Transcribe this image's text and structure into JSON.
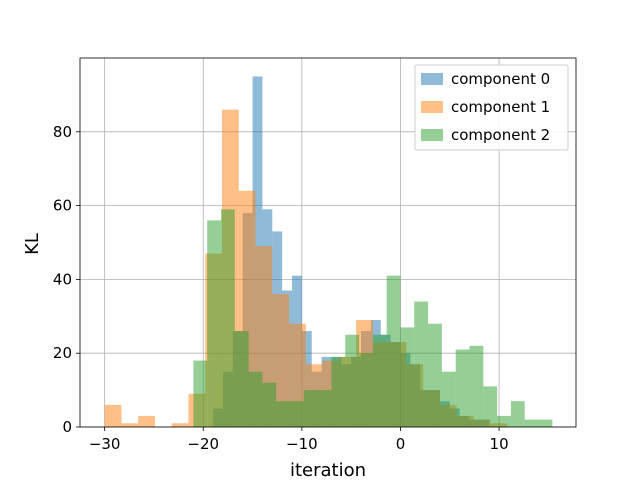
{
  "chart_data": {
    "type": "histogram",
    "xlabel": "iteration",
    "ylabel": "KL",
    "xlim": [
      -32.5,
      17.8
    ],
    "ylim": [
      0,
      100
    ],
    "xticks": [
      -30,
      -20,
      -10,
      0,
      10
    ],
    "xtick_labels": [
      "−30",
      "−20",
      "−10",
      "0",
      "10"
    ],
    "yticks": [
      0,
      20,
      40,
      60,
      80
    ],
    "ytick_labels": [
      "0",
      "20",
      "40",
      "60",
      "80"
    ],
    "grid": true,
    "legend_position": "upper right",
    "series": [
      {
        "name": "component 0",
        "color": "#1f77b4",
        "bins": [
          [
            -19,
            -18,
            5
          ],
          [
            -18,
            -17,
            15
          ],
          [
            -17,
            -16,
            26
          ],
          [
            -16,
            -15,
            58
          ],
          [
            -15,
            -14,
            95
          ],
          [
            -14,
            -13,
            59
          ],
          [
            -13,
            -12,
            53
          ],
          [
            -12,
            -11,
            37
          ],
          [
            -11,
            -10,
            41
          ],
          [
            -10,
            -9,
            26
          ],
          [
            -9,
            -8,
            15
          ],
          [
            -8,
            -7,
            19
          ],
          [
            -7,
            -6,
            19
          ],
          [
            -6,
            -5,
            17
          ],
          [
            -5,
            -4,
            19
          ],
          [
            -4,
            -3,
            26
          ],
          [
            -3,
            -2,
            29
          ],
          [
            -2,
            -1,
            25
          ],
          [
            -1,
            0,
            23
          ],
          [
            0,
            1,
            20
          ],
          [
            1,
            2,
            17
          ],
          [
            2,
            3,
            10
          ],
          [
            3,
            4,
            10
          ],
          [
            4,
            5,
            7
          ],
          [
            5,
            6,
            5
          ],
          [
            6,
            7,
            3
          ],
          [
            7,
            8,
            2
          ],
          [
            8,
            9,
            2
          ]
        ]
      },
      {
        "name": "component 1",
        "color": "#ff7f0e",
        "bins": [
          [
            -30,
            -28.3,
            6
          ],
          [
            -28.3,
            -26.6,
            1
          ],
          [
            -26.6,
            -24.9,
            3
          ],
          [
            -23.2,
            -21.5,
            1
          ],
          [
            -21.5,
            -19.8,
            9
          ],
          [
            -19.8,
            -18.1,
            47
          ],
          [
            -18.1,
            -16.4,
            86
          ],
          [
            -16.4,
            -14.7,
            64
          ],
          [
            -14.7,
            -13.0,
            49
          ],
          [
            -13.0,
            -11.3,
            36
          ],
          [
            -11.3,
            -9.6,
            28
          ],
          [
            -9.6,
            -7.9,
            17
          ],
          [
            -7.9,
            -6.2,
            18
          ],
          [
            -6.2,
            -4.5,
            19
          ],
          [
            -4.5,
            -2.8,
            29
          ],
          [
            -2.8,
            -1.1,
            23
          ],
          [
            -1.1,
            0.6,
            23
          ],
          [
            0.6,
            2.3,
            17
          ],
          [
            2.3,
            4.0,
            10
          ],
          [
            4.0,
            5.7,
            6
          ],
          [
            5.7,
            7.4,
            3
          ],
          [
            7.4,
            9.1,
            2
          ],
          [
            9.1,
            10.8,
            1
          ]
        ]
      },
      {
        "name": "component 2",
        "color": "#2ca02c",
        "bins": [
          [
            -21.0,
            -19.6,
            18
          ],
          [
            -19.6,
            -18.2,
            56
          ],
          [
            -18.2,
            -16.8,
            59
          ],
          [
            -16.8,
            -15.4,
            26
          ],
          [
            -15.4,
            -14.0,
            15
          ],
          [
            -14.0,
            -12.6,
            12
          ],
          [
            -12.6,
            -11.2,
            7
          ],
          [
            -11.2,
            -9.8,
            7
          ],
          [
            -9.8,
            -8.4,
            10
          ],
          [
            -8.4,
            -7.0,
            10
          ],
          [
            -7.0,
            -5.6,
            19
          ],
          [
            -5.6,
            -4.2,
            25
          ],
          [
            -4.2,
            -2.8,
            20
          ],
          [
            -2.8,
            -1.4,
            25
          ],
          [
            -1.4,
            0.0,
            41
          ],
          [
            0.0,
            1.4,
            27
          ],
          [
            1.4,
            2.8,
            34
          ],
          [
            2.8,
            4.2,
            28
          ],
          [
            4.2,
            5.6,
            15
          ],
          [
            5.6,
            7.0,
            21
          ],
          [
            7.0,
            8.4,
            22
          ],
          [
            8.4,
            9.8,
            11
          ],
          [
            9.8,
            11.2,
            3
          ],
          [
            11.2,
            12.6,
            7
          ],
          [
            12.6,
            14.0,
            2
          ],
          [
            14.0,
            15.4,
            2
          ]
        ]
      }
    ]
  }
}
